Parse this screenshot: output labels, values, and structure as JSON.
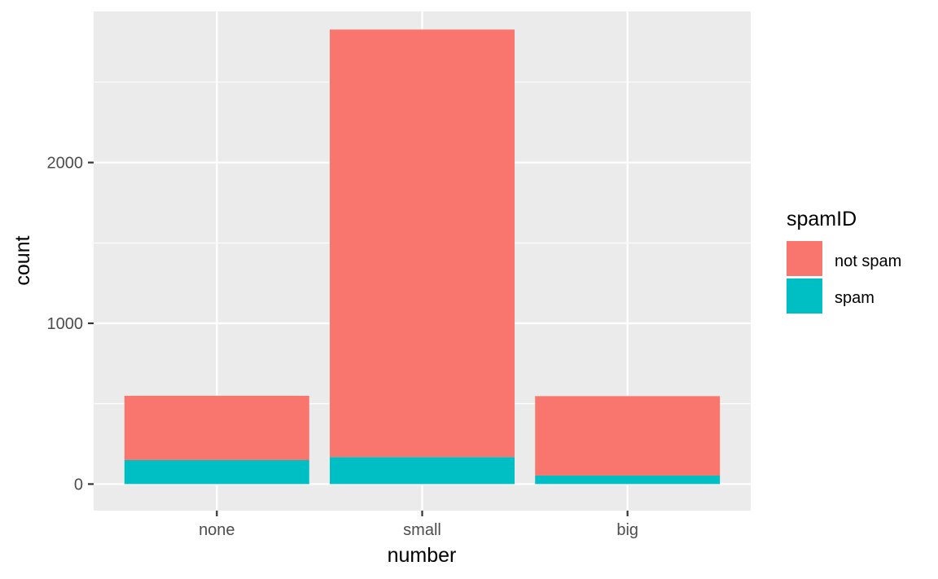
{
  "chart_data": {
    "type": "bar",
    "stacked": true,
    "categories": [
      "none",
      "small",
      "big"
    ],
    "series": [
      {
        "name": "not spam",
        "values": [
          400,
          2659,
          494
        ],
        "color": "#F8766D"
      },
      {
        "name": "spam",
        "values": [
          149,
          168,
          53
        ],
        "color": "#00BFC4"
      }
    ],
    "xlabel": "number",
    "ylabel": "count",
    "ylim": [
      -165,
      2940
    ],
    "yticks": [
      0,
      1000,
      2000
    ],
    "yticklabels": [
      "0",
      "1000",
      "2000"
    ],
    "legend": {
      "title": "spamID",
      "position": "right"
    },
    "grid": true,
    "panel_background": "#EBEBEB"
  }
}
